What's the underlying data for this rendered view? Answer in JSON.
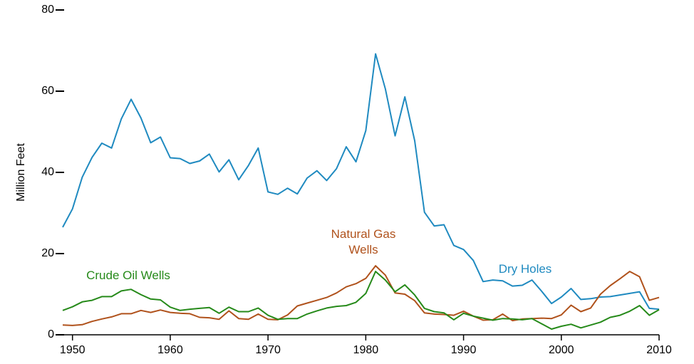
{
  "chart_data": {
    "type": "line",
    "y_label": "Million Feet",
    "x": [
      1949,
      1950,
      1951,
      1952,
      1953,
      1954,
      1955,
      1956,
      1957,
      1958,
      1959,
      1960,
      1961,
      1962,
      1963,
      1964,
      1965,
      1966,
      1967,
      1968,
      1969,
      1970,
      1971,
      1972,
      1973,
      1974,
      1975,
      1976,
      1977,
      1978,
      1979,
      1980,
      1981,
      1982,
      1983,
      1984,
      1985,
      1986,
      1987,
      1988,
      1989,
      1990,
      1991,
      1992,
      1993,
      1994,
      1995,
      1996,
      1997,
      1998,
      1999,
      2000,
      2001,
      2002,
      2003,
      2004,
      2005,
      2006,
      2007,
      2008,
      2009,
      2010
    ],
    "series": [
      {
        "name": "Dry Holes",
        "color": "#1f8ac0",
        "values": [
          26.5,
          31,
          38.8,
          43.7,
          47.2,
          46,
          53.2,
          58,
          53.4,
          47.3,
          48.7,
          43.6,
          43.4,
          42.2,
          42.8,
          44.5,
          40.1,
          43.1,
          38.2,
          41.7,
          46,
          35.2,
          34.6,
          36.1,
          34.7,
          38.6,
          40.4,
          38,
          40.9,
          46.3,
          42.6,
          50.3,
          69.2,
          60.6,
          49,
          58.6,
          47.8,
          30.2,
          26.8,
          27.1,
          22,
          21,
          18.3,
          13.1,
          13.5,
          13.3,
          12,
          12.2,
          13.5,
          10.7,
          7.7,
          9.3,
          11.4,
          8.7,
          8.9,
          9.3,
          9.4,
          9.8,
          10.2,
          10.6,
          6.5,
          6.3
        ]
      },
      {
        "name": "Natural Gas Wells",
        "color": "#b0521c",
        "values": [
          2.4,
          2.3,
          2.5,
          3.3,
          3.9,
          4.4,
          5.2,
          5.2,
          6,
          5.5,
          6.1,
          5.5,
          5.3,
          5.2,
          4.3,
          4.2,
          3.8,
          5.9,
          4,
          3.8,
          5.1,
          3.8,
          3.7,
          4.9,
          7.1,
          7.8,
          8.5,
          9.2,
          10.3,
          11.8,
          12.6,
          13.9,
          17,
          14.7,
          10.3,
          10,
          8.4,
          5.4,
          5.1,
          5,
          4.8,
          5.8,
          4.6,
          3.6,
          3.7,
          5.1,
          3.5,
          3.9,
          4,
          4.1,
          4,
          4.9,
          7.3,
          5.7,
          6.6,
          10,
          12.1,
          13.8,
          15.6,
          14.3,
          8.5,
          9.2
        ]
      },
      {
        "name": "Crude Oil Wells",
        "color": "#268a1a",
        "values": [
          6,
          6.9,
          8.1,
          8.5,
          9.4,
          9.4,
          10.8,
          11.2,
          9.9,
          8.8,
          8.6,
          6.8,
          6,
          6.3,
          6.5,
          6.7,
          5.3,
          6.8,
          5.7,
          5.7,
          6.6,
          4.8,
          3.8,
          4,
          4,
          5.1,
          5.9,
          6.6,
          7,
          7.2,
          8,
          10.2,
          15.6,
          13.5,
          10.6,
          12.3,
          9.8,
          6.5,
          5.7,
          5.4,
          3.7,
          5.3,
          4.6,
          4.1,
          3.6,
          4,
          3.9,
          3.7,
          4,
          2.7,
          1.4,
          2.1,
          2.6,
          1.7,
          2.4,
          3.1,
          4.3,
          4.8,
          5.8,
          7.2,
          4.8,
          6.2
        ]
      }
    ],
    "xlim": [
      1949,
      2010
    ],
    "xticks": [
      1950,
      1960,
      1970,
      1980,
      1990,
      2000,
      2010
    ],
    "ylim": [
      0,
      80
    ],
    "yticks": [
      0,
      20,
      40,
      60,
      80
    ]
  }
}
